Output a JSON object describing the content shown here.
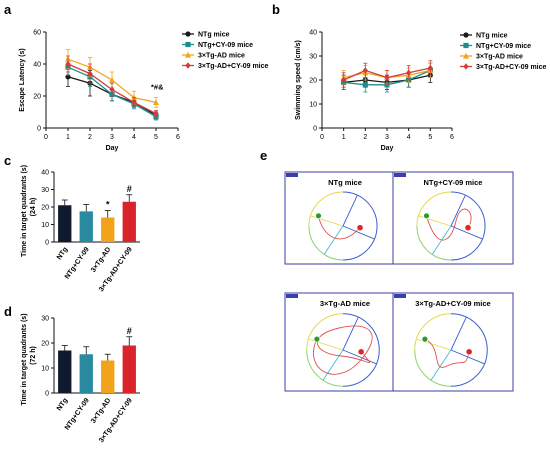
{
  "panels": {
    "a": "a",
    "b": "b",
    "c": "c",
    "d": "d",
    "e": "e"
  },
  "colors": {
    "NTg": "#1a1a1a",
    "NTg+CY-09": "#1b8f8f",
    "3xTg-AD": "#f2a51d",
    "3xTg-AD+CY-09": "#d63a3a",
    "bar_NTg": "#0f1a2e",
    "bar_NTgCY": "#2a8aa0",
    "bar_3xTg": "#f2a31c",
    "bar_3xTgCY": "#d8242a",
    "swimmer_path": "#e05050",
    "quadrant_blue": "#3a5fd0",
    "quadrant_yellow": "#e6d84a",
    "quadrant_cyan": "#3fbcd8",
    "quadrant_green": "#8bd46a",
    "platform_red": "#e02525",
    "start_green": "#2e9a2e",
    "frame": "#3b3fa8"
  },
  "chart_data": [
    {
      "id": "a",
      "type": "line",
      "xlabel": "Day",
      "ylabel": "Escape Latency (s)",
      "xlim": [
        0,
        6
      ],
      "ylim": [
        0,
        60
      ],
      "xticks": [
        0,
        1,
        2,
        3,
        4,
        5,
        6
      ],
      "yticks": [
        0,
        20,
        40,
        60
      ],
      "x": [
        1,
        2,
        3,
        4,
        5
      ],
      "series": [
        {
          "name": "NTg mice",
          "values": [
            32,
            28,
            21,
            16,
            8
          ],
          "err": [
            6,
            8,
            4,
            3,
            2
          ]
        },
        {
          "name": "NTg+CY-09 mice",
          "values": [
            38,
            32,
            21,
            15,
            7
          ],
          "err": [
            5,
            6,
            4,
            3,
            2
          ]
        },
        {
          "name": "3×Tg-AD mice",
          "values": [
            43,
            38,
            30,
            19,
            16
          ],
          "err": [
            6,
            6,
            5,
            4,
            3
          ]
        },
        {
          "name": "3×Tg-AD+CY-09 mice",
          "values": [
            40,
            34,
            24,
            16,
            9
          ],
          "err": [
            5,
            6,
            4,
            3,
            2
          ]
        }
      ],
      "annotation": "*#&",
      "legend": "top-right",
      "grid": false
    },
    {
      "id": "b",
      "type": "line",
      "xlabel": "Day",
      "ylabel": "Swimming speed (cm/s)",
      "xlim": [
        0,
        6
      ],
      "ylim": [
        0,
        40
      ],
      "xticks": [
        0,
        1,
        2,
        3,
        4,
        5,
        6
      ],
      "yticks": [
        0,
        10,
        20,
        30,
        40
      ],
      "x": [
        1,
        2,
        3,
        4,
        5
      ],
      "series": [
        {
          "name": "NTg mice",
          "values": [
            19,
            20,
            19,
            20,
            22
          ],
          "err": [
            3,
            3,
            3,
            3,
            3
          ]
        },
        {
          "name": "NTg+CY-09 mice",
          "values": [
            19,
            18,
            18,
            20,
            24
          ],
          "err": [
            3,
            3,
            3,
            3,
            3
          ]
        },
        {
          "name": "3×Tg-AD mice",
          "values": [
            21,
            23,
            21,
            22,
            24
          ],
          "err": [
            3,
            3,
            3,
            3,
            3
          ]
        },
        {
          "name": "3×Tg-AD+CY-09 mice",
          "values": [
            20,
            24,
            21,
            23,
            25
          ],
          "err": [
            3,
            3,
            3,
            3,
            3
          ]
        }
      ],
      "legend": "right",
      "grid": false
    },
    {
      "id": "c",
      "type": "bar",
      "ylabel": "Time in target quadrants (s)",
      "ylabel2": "(24 h)",
      "ylim": [
        0,
        40
      ],
      "yticks": [
        0,
        10,
        20,
        30,
        40
      ],
      "categories": [
        "NTg",
        "NTg+CY-09",
        "3×Tg-AD",
        "3×Tg-AD+CY-09"
      ],
      "values": [
        21,
        17.5,
        14,
        23
      ],
      "err": [
        3,
        4,
        4,
        4
      ],
      "annotations": [
        "",
        "",
        "*",
        "#"
      ]
    },
    {
      "id": "d",
      "type": "bar",
      "ylabel": "Time in target quadrants (s)",
      "ylabel2": "(72 h)",
      "ylim": [
        0,
        30
      ],
      "yticks": [
        0,
        10,
        20,
        30
      ],
      "categories": [
        "NTg",
        "NTg+CY-09",
        "3×Tg-AD",
        "3×Tg-AD+CY-09"
      ],
      "values": [
        17,
        15.5,
        13,
        19
      ],
      "err": [
        2,
        3,
        2.5,
        3.5
      ],
      "annotations": [
        "",
        "",
        "",
        "#"
      ]
    }
  ],
  "tracks": [
    {
      "title": "NTg mice"
    },
    {
      "title": "NTg+CY-09 mice"
    },
    {
      "title": "3×Tg-AD mice"
    },
    {
      "title": "3×Tg-AD+CY-09 mice"
    }
  ]
}
